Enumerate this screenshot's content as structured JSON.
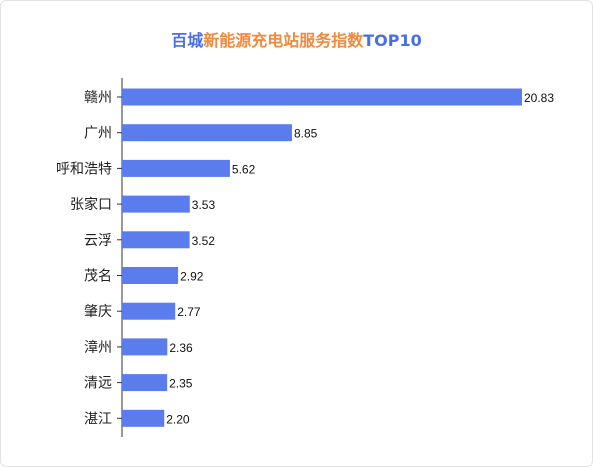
{
  "title": {
    "part1": "百城",
    "part2": "新能源充电站服务指数",
    "part3": "TOP10"
  },
  "colors": {
    "bar": "#5b7cec",
    "title_blue": "#4a6fe3",
    "title_orange": "#f08a3c",
    "axis": "#333333"
  },
  "chart_data": {
    "type": "bar",
    "orientation": "horizontal",
    "title": "百城新能源充电站服务指数TOP10",
    "categories": [
      "赣州",
      "广州",
      "呼和浩特",
      "张家口",
      "云浮",
      "茂名",
      "肇庆",
      "漳州",
      "清远",
      "湛江"
    ],
    "values": [
      20.83,
      8.85,
      5.62,
      3.53,
      3.52,
      2.92,
      2.77,
      2.36,
      2.35,
      2.2
    ],
    "value_labels": [
      "20.83",
      "8.85",
      "5.62",
      "3.53",
      "3.52",
      "2.92",
      "2.77",
      "2.36",
      "2.35",
      "2.20"
    ],
    "xlim": [
      0,
      20.83
    ],
    "grid": false,
    "legend": "none"
  }
}
